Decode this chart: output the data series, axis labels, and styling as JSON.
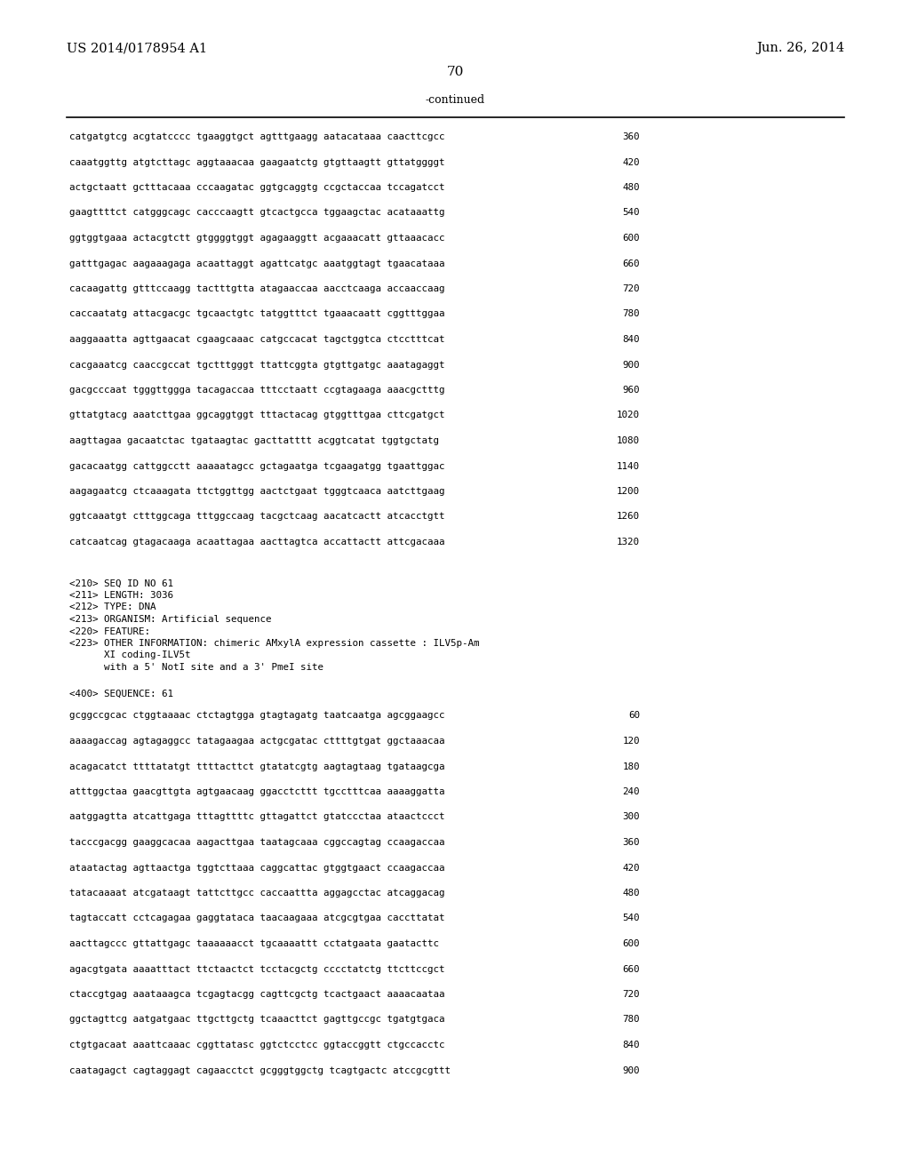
{
  "header_left": "US 2014/0178954 A1",
  "header_right": "Jun. 26, 2014",
  "page_number": "70",
  "continued_label": "-continued",
  "background_color": "#ffffff",
  "text_color": "#000000",
  "sequence_lines_top": [
    [
      "catgatgtcg acgtatcccc tgaaggtgct agtttgaagg aatacataaa caacttcgcc",
      "360"
    ],
    [
      "caaatggttg atgtcttagc aggtaaacaa gaagaatctg gtgttaagtt gttatggggt",
      "420"
    ],
    [
      "actgctaatt gctttacaaa cccaagatac ggtgcaggtg ccgctaccaa tccagatcct",
      "480"
    ],
    [
      "gaagttttct catgggcagc cacccaagtt gtcactgcca tggaagctac acataaattg",
      "540"
    ],
    [
      "ggtggtgaaa actacgtctt gtggggtggt agagaaggtt acgaaacatt gttaaacacc",
      "600"
    ],
    [
      "gatttgagac aagaaagaga acaattaggt agattcatgc aaatggtagt tgaacataaa",
      "660"
    ],
    [
      "cacaagattg gtttccaagg tactttgtta atagaaccaa aacctcaaga accaaccaag",
      "720"
    ],
    [
      "caccaatatg attacgacgc tgcaactgtc tatggtttct tgaaacaatt cggtttggaa",
      "780"
    ],
    [
      "aaggaaatta agttgaacat cgaagcaaac catgccacat tagctggtca ctcctttcat",
      "840"
    ],
    [
      "cacgaaatcg caaccgccat tgctttgggt ttattcggta gtgttgatgc aaatagaggt",
      "900"
    ],
    [
      "gacgcccaat tgggttggga tacagaccaa tttcctaatt ccgtagaaga aaacgctttg",
      "960"
    ],
    [
      "gttatgtacg aaatcttgaa ggcaggtggt tttactacag gtggtttgaa cttcgatgct",
      "1020"
    ],
    [
      "aagttagaa gacaatctac tgataagtac gacttatttt acggtcatat tggtgctatg",
      "1080"
    ],
    [
      "gacacaatgg cattggcctt aaaaatagcc gctagaatga tcgaagatgg tgaattggac",
      "1140"
    ],
    [
      "aagagaatcg ctcaaagata ttctggttgg aactctgaat tgggtcaaca aatcttgaag",
      "1200"
    ],
    [
      "ggtcaaatgt ctttggcaga tttggccaag tacgctcaag aacatcactt atcacctgtt",
      "1260"
    ],
    [
      "catcaatcag gtagacaaga acaattagaa aacttagtca accattactt attcgacaaa",
      "1320"
    ]
  ],
  "metadata_lines": [
    "<210> SEQ ID NO 61",
    "<211> LENGTH: 3036",
    "<212> TYPE: DNA",
    "<213> ORGANISM: Artificial sequence",
    "<220> FEATURE:",
    "<223> OTHER INFORMATION: chimeric AMxylA expression cassette : ILV5p-Am",
    "      XI coding-ILV5t",
    "      with a 5' NotI site and a 3' PmeI site"
  ],
  "seq_label": "<400> SEQUENCE: 61",
  "sequence_lines_bottom": [
    [
      "gcggccgcac ctggtaaaac ctctagtgga gtagtagatg taatcaatga agcggaagcc",
      "60"
    ],
    [
      "aaaagaccag agtagaggcc tatagaagaa actgcgatac cttttgtgat ggctaaacaa",
      "120"
    ],
    [
      "acagacatct ttttatatgt ttttacttct gtatatcgtg aagtagtaag tgataagcga",
      "180"
    ],
    [
      "atttggctaa gaacgttgta agtgaacaag ggacctcttt tgcctttcaa aaaaggatta",
      "240"
    ],
    [
      "aatggagtta atcattgaga tttagttttc gttagattct gtatccctaa ataactccct",
      "300"
    ],
    [
      "tacccgacgg gaaggcacaa aagacttgaa taatagcaaa cggccagtag ccaagaccaa",
      "360"
    ],
    [
      "ataatactag agttaactga tggtcttaaa caggcattac gtggtgaact ccaagaccaa",
      "420"
    ],
    [
      "tatacaaaat atcgataagt tattcttgcc caccaattta aggagcctac atcaggacag",
      "480"
    ],
    [
      "tagtaccatt cctcagagaa gaggtataca taacaagaaa atcgcgtgaa caccttatat",
      "540"
    ],
    [
      "aacttagccc gttattgagc taaaaaacct tgcaaaattt cctatgaata gaatacttc",
      "600"
    ],
    [
      "agacgtgata aaaatttact ttctaactct tcctacgctg cccctatctg ttcttccgct",
      "660"
    ],
    [
      "ctaccgtgag aaataaagca tcgagtacgg cagttcgctg tcactgaact aaaacaataa",
      "720"
    ],
    [
      "ggctagttcg aatgatgaac ttgcttgctg tcaaacttct gagttgccgc tgatgtgaca",
      "780"
    ],
    [
      "ctgtgacaat aaattcaaac cggttatasc ggtctcctcc ggtaccggtt ctgccacctc",
      "840"
    ],
    [
      "caatagagct cagtaggagt cagaacctct gcgggtggctg tcagtgactc atccgcgttt",
      "900"
    ]
  ]
}
